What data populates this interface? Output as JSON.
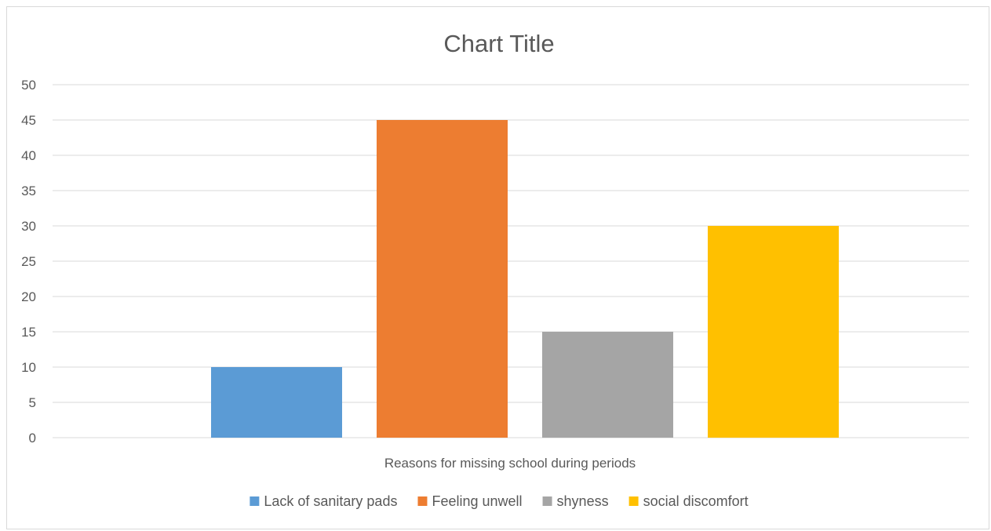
{
  "chart_data": {
    "type": "bar",
    "title": "Chart Title",
    "xlabel": "Reasons for missing school during periods",
    "ylabel": "",
    "ylim": [
      0,
      50
    ],
    "y_ticks": [
      0,
      5,
      10,
      15,
      20,
      25,
      30,
      35,
      40,
      45,
      50
    ],
    "grid": true,
    "legend_position": "bottom",
    "categories": [
      "Reasons for missing school during periods"
    ],
    "series": [
      {
        "name": "Lack of sanitary pads",
        "values": [
          10
        ],
        "color": "#5b9bd5"
      },
      {
        "name": "Feeling unwell",
        "values": [
          45
        ],
        "color": "#ed7d31"
      },
      {
        "name": "shyness",
        "values": [
          15
        ],
        "color": "#a5a5a5"
      },
      {
        "name": "social discomfort",
        "values": [
          30
        ],
        "color": "#ffc000"
      }
    ]
  }
}
